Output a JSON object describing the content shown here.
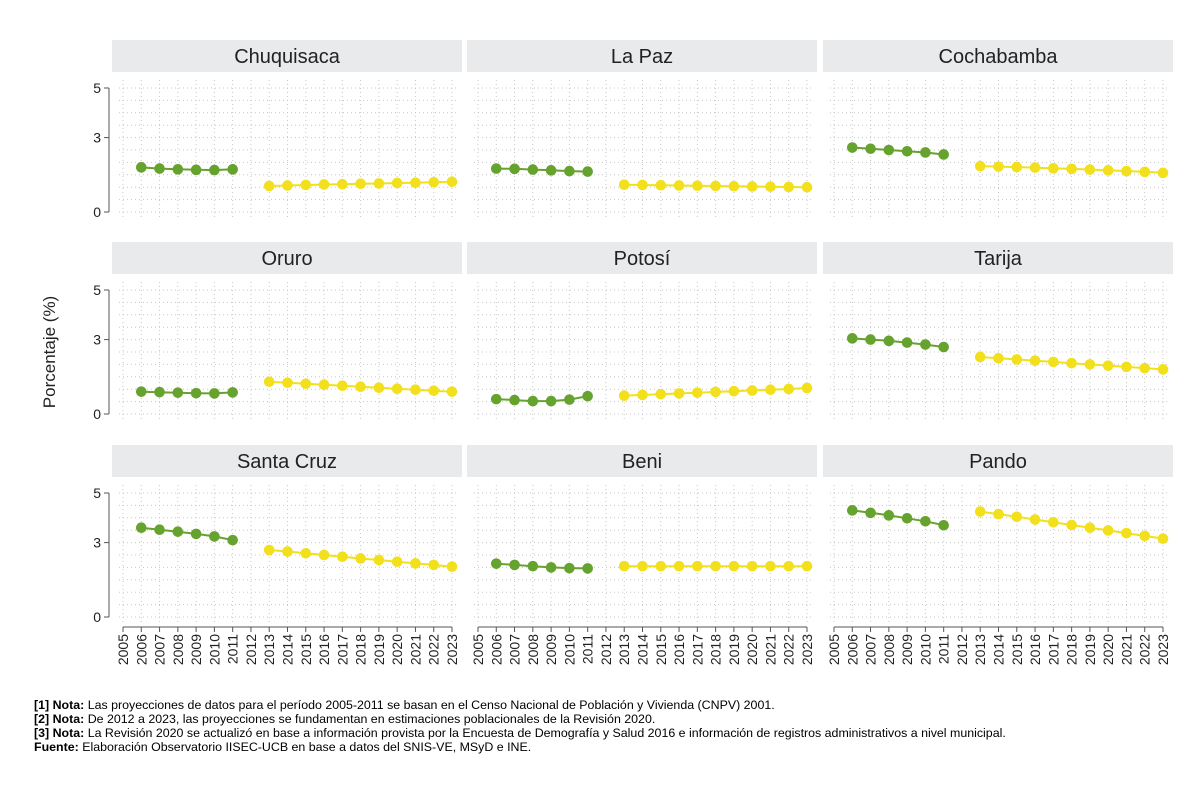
{
  "chart_data": {
    "type": "line",
    "ylabel": "Porcentaje (%)",
    "ylim": [
      0,
      5
    ],
    "yticks": [
      "0",
      "3",
      "5"
    ],
    "xlim": [
      2005,
      2023
    ],
    "xticks": [
      "2005",
      "2006",
      "2007",
      "2008",
      "2009",
      "2010",
      "2011",
      "2012",
      "2013",
      "2014",
      "2015",
      "2016",
      "2017",
      "2018",
      "2019",
      "2020",
      "2021",
      "2022",
      "2023"
    ],
    "series_colors": {
      "CNPV 2001": "#66a22e",
      "Revisión 2020": "#f2e01c"
    },
    "panels": [
      {
        "title": "Chuquisaca",
        "series": [
          {
            "name": "CNPV 2001",
            "x": [
              2006,
              2007,
              2008,
              2009,
              2010,
              2011
            ],
            "values": [
              1.8,
              1.75,
              1.72,
              1.7,
              1.69,
              1.72
            ]
          },
          {
            "name": "Revisión 2020",
            "x": [
              2013,
              2014,
              2015,
              2016,
              2017,
              2018,
              2019,
              2020,
              2021,
              2022,
              2023
            ],
            "values": [
              1.05,
              1.07,
              1.09,
              1.11,
              1.12,
              1.14,
              1.15,
              1.17,
              1.18,
              1.2,
              1.22
            ]
          }
        ]
      },
      {
        "title": "La Paz",
        "series": [
          {
            "name": "CNPV 2001",
            "x": [
              2006,
              2007,
              2008,
              2009,
              2010,
              2011
            ],
            "values": [
              1.75,
              1.74,
              1.71,
              1.68,
              1.65,
              1.63
            ]
          },
          {
            "name": "Revisión 2020",
            "x": [
              2013,
              2014,
              2015,
              2016,
              2017,
              2018,
              2019,
              2020,
              2021,
              2022,
              2023
            ],
            "values": [
              1.1,
              1.09,
              1.08,
              1.07,
              1.06,
              1.05,
              1.04,
              1.03,
              1.02,
              1.01,
              1.0
            ]
          }
        ]
      },
      {
        "title": "Cochabamba",
        "series": [
          {
            "name": "CNPV 2001",
            "x": [
              2006,
              2007,
              2008,
              2009,
              2010,
              2011
            ],
            "values": [
              2.6,
              2.55,
              2.5,
              2.45,
              2.4,
              2.32
            ]
          },
          {
            "name": "Revisión 2020",
            "x": [
              2013,
              2014,
              2015,
              2016,
              2017,
              2018,
              2019,
              2020,
              2021,
              2022,
              2023
            ],
            "values": [
              1.85,
              1.83,
              1.81,
              1.79,
              1.76,
              1.74,
              1.71,
              1.68,
              1.65,
              1.62,
              1.58
            ]
          }
        ]
      },
      {
        "title": "Oruro",
        "series": [
          {
            "name": "CNPV 2001",
            "x": [
              2006,
              2007,
              2008,
              2009,
              2010,
              2011
            ],
            "values": [
              0.9,
              0.88,
              0.86,
              0.84,
              0.83,
              0.87
            ]
          },
          {
            "name": "Revisión 2020",
            "x": [
              2013,
              2014,
              2015,
              2016,
              2017,
              2018,
              2019,
              2020,
              2021,
              2022,
              2023
            ],
            "values": [
              1.3,
              1.26,
              1.22,
              1.18,
              1.14,
              1.1,
              1.06,
              1.02,
              0.98,
              0.94,
              0.9
            ]
          }
        ]
      },
      {
        "title": "Potosí",
        "series": [
          {
            "name": "CNPV 2001",
            "x": [
              2006,
              2007,
              2008,
              2009,
              2010,
              2011
            ],
            "values": [
              0.6,
              0.56,
              0.52,
              0.52,
              0.58,
              0.72
            ]
          },
          {
            "name": "Revisión 2020",
            "x": [
              2013,
              2014,
              2015,
              2016,
              2017,
              2018,
              2019,
              2020,
              2021,
              2022,
              2023
            ],
            "values": [
              0.74,
              0.77,
              0.8,
              0.83,
              0.86,
              0.89,
              0.92,
              0.95,
              0.98,
              1.01,
              1.05
            ]
          }
        ]
      },
      {
        "title": "Tarija",
        "series": [
          {
            "name": "CNPV 2001",
            "x": [
              2006,
              2007,
              2008,
              2009,
              2010,
              2011
            ],
            "values": [
              3.05,
              3.0,
              2.95,
              2.88,
              2.8,
              2.7
            ]
          },
          {
            "name": "Revisión 2020",
            "x": [
              2013,
              2014,
              2015,
              2016,
              2017,
              2018,
              2019,
              2020,
              2021,
              2022,
              2023
            ],
            "values": [
              2.3,
              2.25,
              2.2,
              2.15,
              2.1,
              2.05,
              2.0,
              1.95,
              1.9,
              1.85,
              1.8
            ]
          }
        ]
      },
      {
        "title": "Santa Cruz",
        "series": [
          {
            "name": "CNPV 2001",
            "x": [
              2006,
              2007,
              2008,
              2009,
              2010,
              2011
            ],
            "values": [
              3.6,
              3.52,
              3.44,
              3.35,
              3.25,
              3.1
            ]
          },
          {
            "name": "Revisión 2020",
            "x": [
              2013,
              2014,
              2015,
              2016,
              2017,
              2018,
              2019,
              2020,
              2021,
              2022,
              2023
            ],
            "values": [
              2.7,
              2.64,
              2.57,
              2.5,
              2.43,
              2.36,
              2.3,
              2.23,
              2.16,
              2.1,
              2.03
            ]
          }
        ]
      },
      {
        "title": "Beni",
        "series": [
          {
            "name": "CNPV 2001",
            "x": [
              2006,
              2007,
              2008,
              2009,
              2010,
              2011
            ],
            "values": [
              2.15,
              2.1,
              2.05,
              2.0,
              1.97,
              1.96
            ]
          },
          {
            "name": "Revisión 2020",
            "x": [
              2013,
              2014,
              2015,
              2016,
              2017,
              2018,
              2019,
              2020,
              2021,
              2022,
              2023
            ],
            "values": [
              2.05,
              2.05,
              2.05,
              2.05,
              2.05,
              2.05,
              2.05,
              2.05,
              2.05,
              2.05,
              2.05
            ]
          }
        ]
      },
      {
        "title": "Pando",
        "series": [
          {
            "name": "CNPV 2001",
            "x": [
              2006,
              2007,
              2008,
              2009,
              2010,
              2011
            ],
            "values": [
              4.3,
              4.2,
              4.1,
              3.98,
              3.86,
              3.7
            ]
          },
          {
            "name": "Revisión 2020",
            "x": [
              2013,
              2014,
              2015,
              2016,
              2017,
              2018,
              2019,
              2020,
              2021,
              2022,
              2023
            ],
            "values": [
              4.25,
              4.15,
              4.04,
              3.93,
              3.82,
              3.71,
              3.6,
              3.49,
              3.38,
              3.27,
              3.16
            ]
          }
        ]
      }
    ]
  },
  "notes": [
    {
      "label": "[1] Nota:",
      "text": " Las proyecciones de datos para el período 2005-2011 se basan en el Censo Nacional de Población y Vivienda (CNPV) 2001."
    },
    {
      "label": "[2] Nota:",
      "text": " De 2012 a 2023, las proyecciones se fundamentan en estimaciones poblacionales de la Revisión 2020."
    },
    {
      "label": "[3] Nota:",
      "text": " La Revisión 2020 se actualizó en base a información provista por la Encuesta de Demografía y Salud 2016 e información de registros administrativos a nivel municipal."
    },
    {
      "label": "Fuente:",
      "text": " Elaboración Observatorio IISEC-UCB en base a datos del SNIS-VE, MSyD e INE."
    }
  ]
}
